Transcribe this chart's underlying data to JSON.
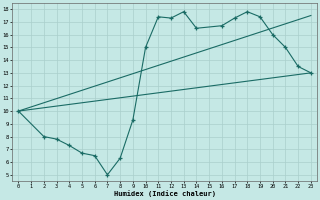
{
  "xlabel": "Humidex (Indice chaleur)",
  "xlim": [
    -0.5,
    23.5
  ],
  "ylim": [
    4.5,
    18.5
  ],
  "xticks": [
    0,
    1,
    2,
    3,
    4,
    5,
    6,
    7,
    8,
    9,
    10,
    11,
    12,
    13,
    14,
    15,
    16,
    17,
    18,
    19,
    20,
    21,
    22,
    23
  ],
  "yticks": [
    5,
    6,
    7,
    8,
    9,
    10,
    11,
    12,
    13,
    14,
    15,
    16,
    17,
    18
  ],
  "bg_color": "#c5e8e5",
  "grid_color": "#aacfcc",
  "line_color": "#1a6b65",
  "line1_x": [
    0,
    23
  ],
  "line1_y": [
    10,
    13
  ],
  "line2_x": [
    0,
    23
  ],
  "line2_y": [
    10,
    17.5
  ],
  "line3_x": [
    0,
    2,
    3,
    4,
    5,
    6,
    7,
    8,
    9,
    10,
    11,
    12,
    13,
    14,
    16,
    17,
    18,
    19,
    20,
    21,
    22,
    23
  ],
  "line3_y": [
    10,
    8,
    7.8,
    7.3,
    6.7,
    6.5,
    5.0,
    6.3,
    9.3,
    15.0,
    17.4,
    17.3,
    17.8,
    16.5,
    16.7,
    17.3,
    17.8,
    17.4,
    16.0,
    15.0,
    13.5,
    13.0
  ]
}
